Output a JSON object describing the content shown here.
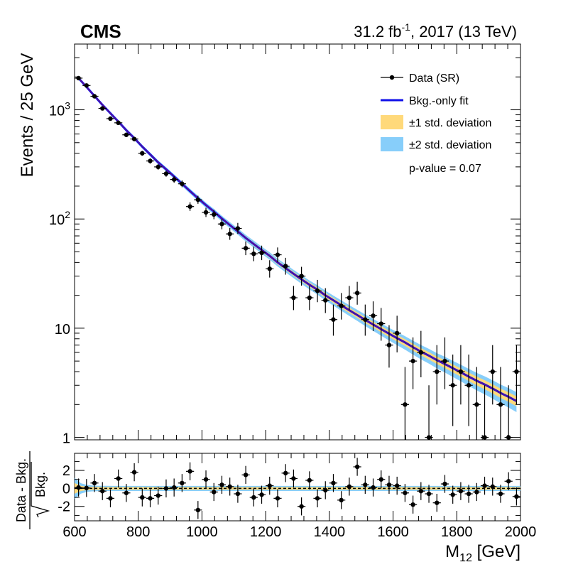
{
  "header": {
    "experiment": "CMS",
    "lumi_value": "31.2 fb",
    "lumi_exp": "-1",
    "lumi_rest": ", 2017 (13 TeV)"
  },
  "chart_data": [
    {
      "type": "scatter",
      "panel": "main",
      "ylabel": "Events / 25 GeV",
      "yscale": "log",
      "ylim": [
        0.95,
        4000
      ],
      "xlim": [
        600,
        2000
      ],
      "bin_width": 25,
      "yticks": [
        1,
        10,
        100,
        1000
      ],
      "ytick_labels": [
        {
          "base": "1",
          "exp": ""
        },
        {
          "base": "10",
          "exp": ""
        },
        {
          "base": "10",
          "exp": "2"
        },
        {
          "base": "10",
          "exp": "3"
        }
      ],
      "legend": {
        "position": "top-right",
        "entries": [
          "Data (SR)",
          "Bkg.-only fit",
          "±1 std. deviation",
          "±2 std. deviation"
        ],
        "pvalue": "p-value = 0.07"
      },
      "colors": {
        "fit": "#1010e8",
        "band1": "#ffd97a",
        "band2": "#87cefa",
        "fit_center": "#cc1111"
      },
      "bins_x": [
        612.5,
        637.5,
        662.5,
        687.5,
        712.5,
        737.5,
        762.5,
        787.5,
        812.5,
        837.5,
        862.5,
        887.5,
        912.5,
        937.5,
        962.5,
        987.5,
        1012.5,
        1037.5,
        1062.5,
        1087.5,
        1112.5,
        1137.5,
        1162.5,
        1187.5,
        1212.5,
        1237.5,
        1262.5,
        1287.5,
        1312.5,
        1337.5,
        1362.5,
        1387.5,
        1412.5,
        1437.5,
        1462.5,
        1487.5,
        1512.5,
        1537.5,
        1562.5,
        1587.5,
        1612.5,
        1637.5,
        1662.5,
        1687.5,
        1712.5,
        1737.5,
        1762.5,
        1787.5,
        1812.5,
        1837.5,
        1862.5,
        1887.5,
        1912.5,
        1937.5,
        1962.5,
        1987.5
      ],
      "data_y": [
        1950,
        1670,
        1330,
        1030,
        830,
        760,
        590,
        540,
        400,
        340,
        300,
        260,
        230,
        210,
        130,
        150,
        115,
        110,
        90,
        73,
        82,
        54,
        48,
        49,
        35,
        47,
        37,
        19,
        30,
        19,
        22,
        18,
        12,
        16,
        19,
        21,
        12,
        13,
        11,
        7,
        9,
        2,
        5,
        6,
        1,
        4,
        5,
        3,
        4,
        3,
        2,
        1,
        4,
        2,
        1,
        4
      ],
      "fit_y": [
        1950,
        1620,
        1340,
        1110,
        930,
        780,
        650,
        550,
        460,
        390,
        330,
        285,
        245,
        210,
        180,
        155,
        134,
        117,
        101,
        88,
        77,
        67,
        59,
        52,
        46,
        40,
        35.5,
        31.5,
        28,
        25,
        22.5,
        20,
        18,
        16.2,
        14.6,
        13.2,
        11.9,
        10.8,
        9.8,
        8.9,
        8.1,
        7.4,
        6.7,
        6.1,
        5.6,
        5.1,
        4.7,
        4.3,
        3.95,
        3.6,
        3.3,
        3.05,
        2.8,
        2.55,
        2.35,
        2.15
      ]
    },
    {
      "type": "scatter",
      "panel": "ratio",
      "xlabel": "M",
      "xlabel_sub": "12",
      "xlabel_unit": " [GeV]",
      "ylabel": "Data - Bkg.",
      "ylabel_den": "Bkg.",
      "ylim": [
        -3.6,
        3.9
      ],
      "xlim": [
        600,
        2000
      ],
      "xticks": [
        600,
        800,
        1000,
        1200,
        1400,
        1600,
        1800,
        2000
      ],
      "yticks": [
        -2,
        0,
        2
      ],
      "pulls": [
        0.1,
        0.05,
        0.6,
        -0.3,
        -1.1,
        1.1,
        -0.5,
        1.8,
        -1.0,
        -1.1,
        -0.8,
        0.0,
        0.1,
        0.6,
        1.9,
        -2.4,
        1.0,
        -0.4,
        0.4,
        0.2,
        -0.6,
        1.5,
        -1.0,
        -0.7,
        0.3,
        -1.1,
        1.7,
        1.1,
        -2.0,
        0.9,
        -1.1,
        -0.2,
        0.6,
        -1.3,
        0.2,
        2.4,
        0.4,
        0.1,
        1.0,
        0.4,
        0.3,
        -0.5,
        -1.8,
        -0.3,
        -0.6,
        -1.6,
        0.5,
        -0.7,
        -0.3,
        -0.6,
        -0.4,
        0.3,
        0.2,
        -0.6,
        0.8,
        -0.9
      ]
    }
  ]
}
